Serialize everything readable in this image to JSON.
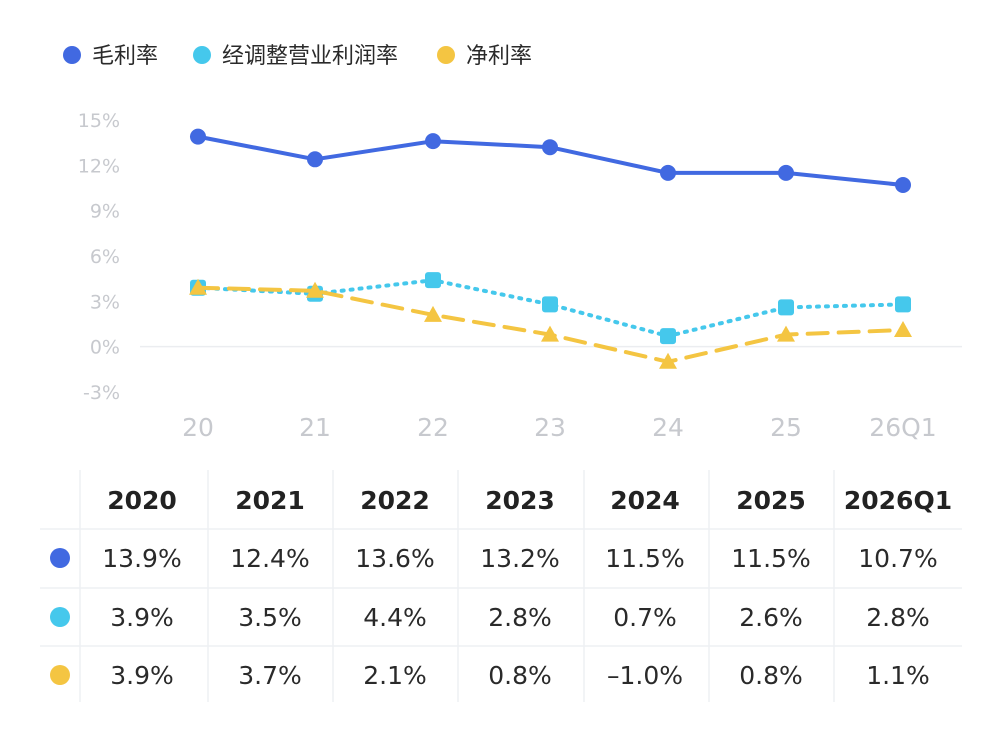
{
  "chart_data": {
    "type": "line",
    "x": [
      "20",
      "21",
      "22",
      "23",
      "24",
      "25",
      "26Q1"
    ],
    "ylim": [
      -3,
      15
    ],
    "yticks": [
      "15%",
      "12%",
      "9%",
      "6%",
      "3%",
      "0%",
      "-3%"
    ],
    "ytick_values": [
      15,
      12,
      9,
      6,
      3,
      0,
      -3
    ],
    "grid": false,
    "legend_position": "top-left",
    "series": [
      {
        "name": "毛利率",
        "color": "#4169e1",
        "style": "solid",
        "marker": "circle",
        "values": [
          13.9,
          12.4,
          13.6,
          13.2,
          11.5,
          11.5,
          10.7
        ]
      },
      {
        "name": "经调整营业利润率",
        "color": "#45c8ec",
        "style": "dotted",
        "marker": "square",
        "values": [
          3.9,
          3.5,
          4.4,
          2.8,
          0.7,
          2.6,
          2.8
        ]
      },
      {
        "name": "净利率",
        "color": "#f4c542",
        "style": "dashed",
        "marker": "triangle",
        "values": [
          3.9,
          3.7,
          2.1,
          0.8,
          -1.0,
          0.8,
          1.1
        ]
      }
    ]
  },
  "table": {
    "headers": [
      "2020",
      "2021",
      "2022",
      "2023",
      "2024",
      "2025",
      "2026Q1"
    ],
    "rows": [
      {
        "color": "#4169e1",
        "cells": [
          "13.9%",
          "12.4%",
          "13.6%",
          "13.2%",
          "11.5%",
          "11.5%",
          "10.7%"
        ]
      },
      {
        "color": "#45c8ec",
        "cells": [
          "3.9%",
          "3.5%",
          "4.4%",
          "2.8%",
          "0.7%",
          "2.6%",
          "2.8%"
        ]
      },
      {
        "color": "#f4c542",
        "cells": [
          "3.9%",
          "3.7%",
          "2.1%",
          "0.8%",
          "–1.0%",
          "0.8%",
          "1.1%"
        ]
      }
    ]
  }
}
